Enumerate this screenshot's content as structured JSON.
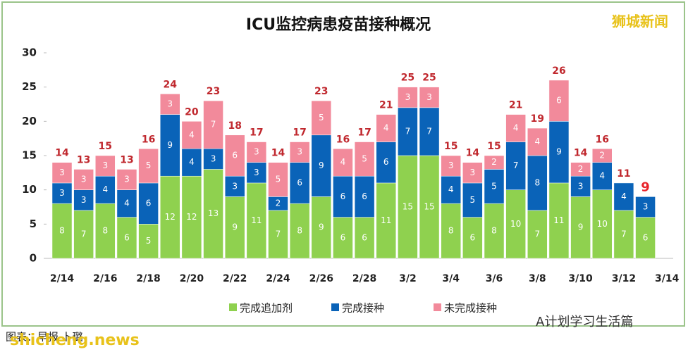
{
  "chart_data": {
    "type": "stacked_bar",
    "title": "ICU监控病患疫苗接种概况",
    "categories": [
      "2/14",
      null,
      "2/16",
      null,
      "2/18",
      null,
      "2/20",
      null,
      "2/22",
      null,
      "2/24",
      null,
      "2/26",
      null,
      "2/28",
      null,
      "3/2",
      null,
      "3/4",
      null,
      "3/6",
      null,
      "3/8",
      null,
      "3/10",
      null,
      "3/12",
      null,
      "3/14"
    ],
    "series": [
      {
        "name": "完成追加剂",
        "color": "#8fd14f",
        "values": [
          8,
          7,
          8,
          6,
          5,
          12,
          12,
          13,
          9,
          11,
          7,
          8,
          9,
          6,
          6,
          11,
          15,
          15,
          8,
          6,
          8,
          10,
          7,
          11,
          9,
          10,
          7,
          6,
          null
        ]
      },
      {
        "name": "完成接种",
        "color": "#0a63b8",
        "values": [
          3,
          3,
          4,
          4,
          6,
          9,
          4,
          3,
          3,
          3,
          2,
          6,
          9,
          6,
          6,
          6,
          7,
          7,
          4,
          5,
          5,
          7,
          8,
          9,
          3,
          4,
          4,
          3,
          null
        ]
      },
      {
        "name": "未完成接种",
        "color": "#f28a9b",
        "values": [
          3,
          3,
          3,
          3,
          5,
          3,
          4,
          7,
          6,
          3,
          5,
          3,
          5,
          4,
          5,
          4,
          3,
          3,
          3,
          3,
          2,
          4,
          4,
          6,
          2,
          2,
          null,
          null,
          null
        ]
      }
    ],
    "totals": [
      14,
      13,
      15,
      13,
      16,
      24,
      20,
      23,
      18,
      17,
      14,
      17,
      23,
      16,
      17,
      21,
      25,
      25,
      15,
      14,
      15,
      21,
      19,
      26,
      14,
      16,
      11,
      9,
      null
    ],
    "ylim": [
      0,
      30
    ],
    "yticks": [
      0,
      5,
      10,
      15,
      20,
      25,
      30
    ],
    "watermarks": [
      "狮城新闻",
      "图表：早报 卜璐",
      "A计划学习生活篇",
      "shicheng.news"
    ]
  }
}
